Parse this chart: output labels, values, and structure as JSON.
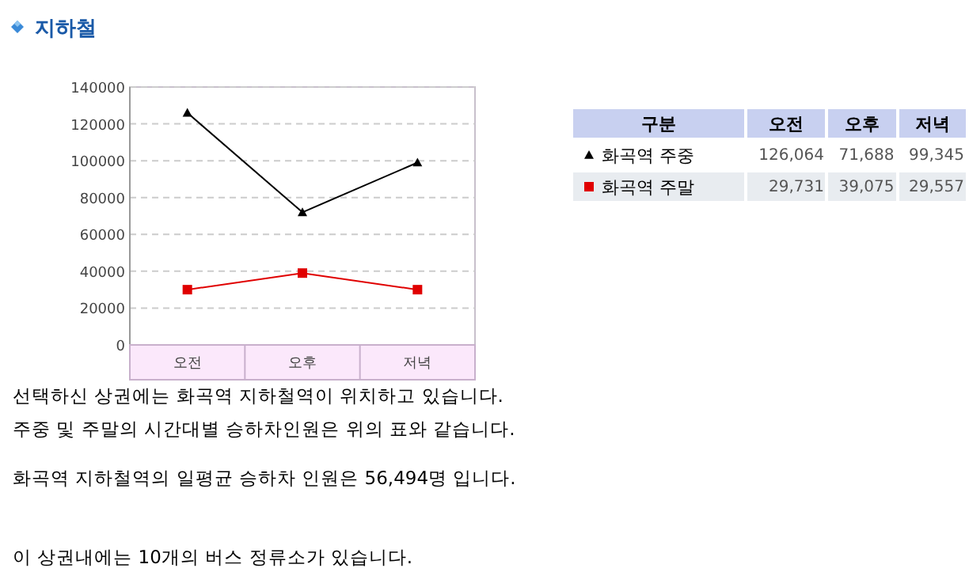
{
  "chart_data": [
    {
      "type": "line",
      "title": "지하철",
      "categories": [
        "오전",
        "오후",
        "저녁"
      ],
      "series": [
        {
          "color": "#000000",
          "marker": "triangle",
          "values": [
            126000,
            72000,
            99000
          ]
        },
        {
          "color": "#e00000",
          "marker": "square",
          "values": [
            30000,
            39000,
            30000
          ]
        }
      ],
      "ylim": [
        0,
        140000
      ],
      "yticks": [
        0,
        20000,
        40000,
        60000,
        80000,
        100000,
        120000,
        140000
      ],
      "grid": "y",
      "line_style": "solid",
      "annotations": [
        "선택하신 상권에는 화곡역 지하철역이 위치하고 있습니다.",
        "주중 및 주말의 시간대별 승하차인원은 위의 표와 같습니다.",
        "화곡역 지하철역의 일평균 승하차 인원은 56,494명 입니다.",
        "이 상권내에는 10개의 버스 정류소가 있습니다."
      ]
    },
    {
      "type": "other",
      "legend_title": "구분",
      "categories": [
        "오전",
        "오후",
        "저녁"
      ],
      "data_labels": true,
      "series": [
        {
          "name": "화곡역 주중",
          "color": "#000000",
          "marker": "triangle",
          "values": [
            126064,
            71688,
            99345
          ],
          "value_labels": [
            "126,064",
            "71,688",
            "99,345"
          ]
        },
        {
          "name": "화곡역 주말",
          "color": "#e00000",
          "marker": "square",
          "values": [
            29731,
            39075,
            29557
          ],
          "value_labels": [
            "29,731",
            "39,075",
            "29,557"
          ]
        }
      ]
    }
  ]
}
